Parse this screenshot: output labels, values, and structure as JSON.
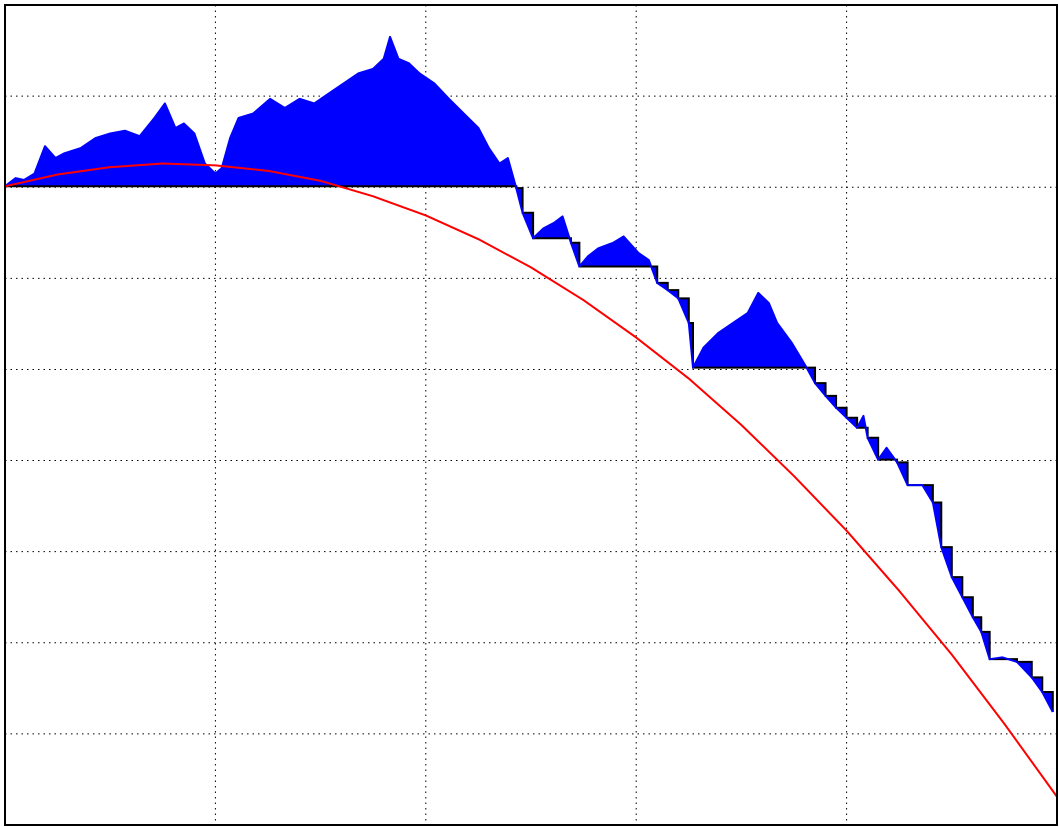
{
  "chart_data": {
    "type": "line",
    "xlim": [
      0,
      5
    ],
    "xticks": [
      0,
      1,
      2,
      3,
      4,
      5
    ],
    "ylim": [
      -7,
      2
    ],
    "yticks": [
      -7,
      -6,
      -5,
      -4,
      -3,
      -2,
      -1,
      0,
      1,
      2
    ],
    "grid": true,
    "series": [
      {
        "color": "#0000ff",
        "fill_to_running_min": true,
        "x": [
          0,
          0.05,
          0.09,
          0.14,
          0.19,
          0.24,
          0.28,
          0.36,
          0.43,
          0.5,
          0.57,
          0.64,
          0.71,
          0.76,
          0.81,
          0.85,
          0.9,
          0.95,
          1.0,
          1.03,
          1.07,
          1.11,
          1.18,
          1.26,
          1.33,
          1.4,
          1.47,
          1.54,
          1.61,
          1.68,
          1.75,
          1.8,
          1.83,
          1.87,
          1.92,
          1.97,
          2.04,
          2.11,
          2.18,
          2.25,
          2.3,
          2.35,
          2.39,
          2.43,
          2.46,
          2.51,
          2.56,
          2.61,
          2.65,
          2.69,
          2.73,
          2.77,
          2.82,
          2.89,
          2.94,
          3.01,
          3.06,
          3.1,
          3.15,
          3.2,
          3.25,
          3.27,
          3.32,
          3.39,
          3.46,
          3.53,
          3.58,
          3.63,
          3.67,
          3.74,
          3.81,
          3.85,
          3.9,
          3.95,
          4.0,
          4.05,
          4.08,
          4.1,
          4.15,
          4.19,
          4.24,
          4.29,
          4.36,
          4.41,
          4.45,
          4.5,
          4.55,
          4.6,
          4.64,
          4.68,
          4.74,
          4.81,
          4.88,
          4.93,
          4.98
        ],
        "values": [
          0.01,
          0.1,
          0.08,
          0.15,
          0.45,
          0.32,
          0.37,
          0.43,
          0.54,
          0.59,
          0.62,
          0.56,
          0.76,
          0.92,
          0.65,
          0.7,
          0.59,
          0.26,
          0.15,
          0.21,
          0.54,
          0.76,
          0.81,
          0.97,
          0.87,
          0.97,
          0.92,
          1.03,
          1.14,
          1.25,
          1.3,
          1.41,
          1.65,
          1.41,
          1.36,
          1.25,
          1.14,
          0.97,
          0.81,
          0.65,
          0.43,
          0.26,
          0.32,
          -0.01,
          -0.28,
          -0.56,
          -0.45,
          -0.39,
          -0.32,
          -0.61,
          -0.87,
          -0.76,
          -0.67,
          -0.61,
          -0.54,
          -0.72,
          -0.8,
          -1.05,
          -1.13,
          -1.22,
          -1.49,
          -1.98,
          -1.76,
          -1.6,
          -1.49,
          -1.38,
          -1.16,
          -1.27,
          -1.49,
          -1.71,
          -1.98,
          -2.15,
          -2.29,
          -2.42,
          -2.53,
          -2.64,
          -2.51,
          -2.75,
          -2.99,
          -2.86,
          -3.02,
          -3.27,
          -3.27,
          -3.46,
          -3.95,
          -4.28,
          -4.5,
          -4.72,
          -4.88,
          -5.18,
          -5.16,
          -5.21,
          -5.38,
          -5.54,
          -5.76
        ]
      },
      {
        "color": "#ff0000",
        "x": [
          0,
          0.25,
          0.5,
          0.75,
          1,
          1.25,
          1.5,
          1.75,
          2,
          2.25,
          2.5,
          2.75,
          3,
          3.25,
          3.5,
          3.75,
          4,
          4.25,
          4.5,
          4.75,
          5
        ],
        "values": [
          0.01,
          0.14,
          0.22,
          0.26,
          0.24,
          0.18,
          0.07,
          -0.1,
          -0.31,
          -0.57,
          -0.88,
          -1.24,
          -1.65,
          -2.1,
          -2.61,
          -3.17,
          -3.77,
          -4.43,
          -5.13,
          -5.89,
          -6.69
        ]
      }
    ]
  }
}
